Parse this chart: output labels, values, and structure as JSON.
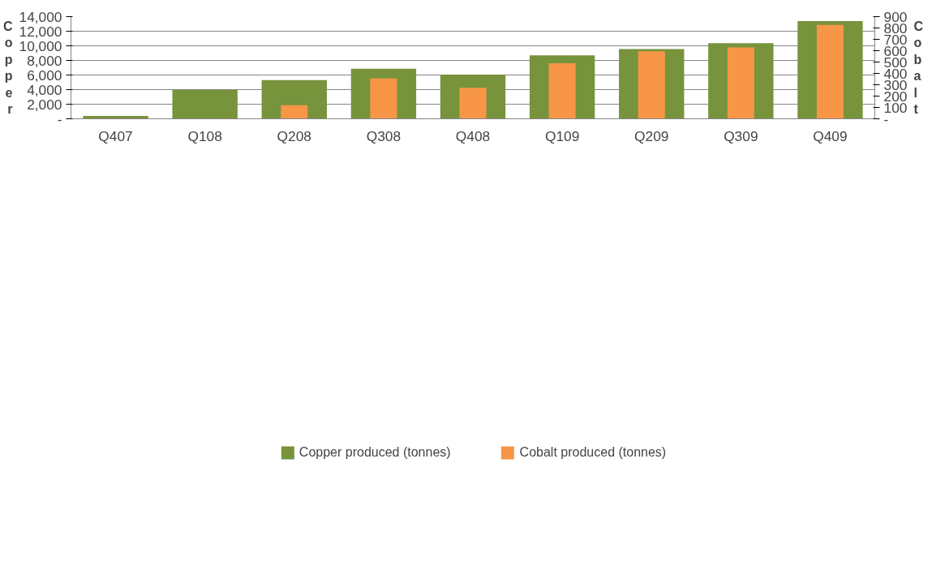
{
  "chart_data": {
    "type": "bar",
    "ylabel": "Copper",
    "y2label": "Cobalt",
    "categories": [
      "Q407",
      "Q108",
      "Q208",
      "Q308",
      "Q408",
      "Q109",
      "Q209",
      "Q309",
      "Q409"
    ],
    "series": [
      {
        "name": "Copper produced (tonnes)",
        "color": "#77933c",
        "values": [
          400,
          3950,
          5300,
          6850,
          6050,
          8700,
          9550,
          10350,
          13400
        ]
      },
      {
        "name": "Cobalt produced (tonnes)",
        "color": "#f79646",
        "axis": "y2",
        "values": [
          null,
          null,
          120,
          356,
          274,
          490,
          595,
          629,
          826
        ]
      }
    ],
    "ylim": [
      0,
      14000
    ],
    "yticks": [
      {
        "value": 0,
        "label": "-"
      },
      {
        "value": 2000,
        "label": "2,000"
      },
      {
        "value": 4000,
        "label": "4,000"
      },
      {
        "value": 6000,
        "label": "6,000"
      },
      {
        "value": 8000,
        "label": "8,000"
      },
      {
        "value": 10000,
        "label": "10,000"
      },
      {
        "value": 12000,
        "label": "12,000"
      },
      {
        "value": 14000,
        "label": "14,000"
      }
    ],
    "y2lim": [
      0,
      900
    ],
    "y2ticks": [
      {
        "value": 0,
        "label": "-"
      },
      100,
      200,
      300,
      400,
      500,
      600,
      700,
      800,
      900
    ],
    "grid": "y",
    "legend": "bottom"
  }
}
